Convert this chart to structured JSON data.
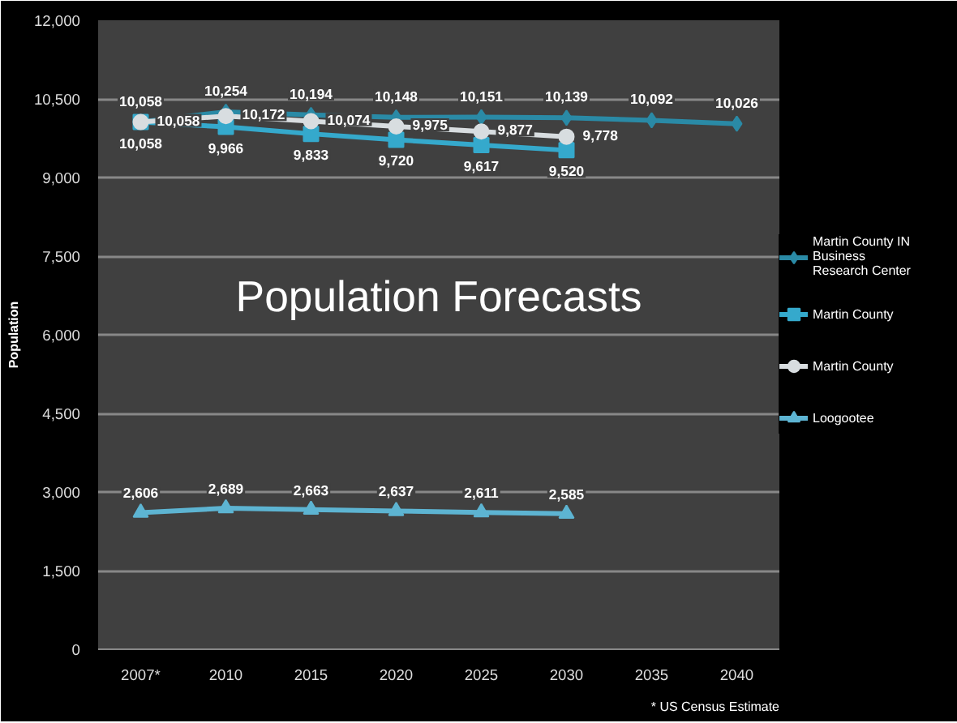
{
  "chart_data": {
    "type": "line",
    "title": "Population Forecasts",
    "ylabel": "Population",
    "categories": [
      "2007*",
      "2010",
      "2015",
      "2020",
      "2025",
      "2030",
      "2035",
      "2040"
    ],
    "series": [
      {
        "name": "Martin County IN Business Research Center",
        "color": "#2a8aa6",
        "marker": "diamond",
        "values": [
          10058,
          10254,
          10194,
          10148,
          10151,
          10139,
          10092,
          10026
        ],
        "value_labels": [
          "10,058",
          "10,254",
          "10,194",
          "10,148",
          "10,151",
          "10,139",
          "10,092",
          "10,026"
        ]
      },
      {
        "name": "Martin County",
        "color": "#35a9cc",
        "marker": "square",
        "values": [
          10058,
          9966,
          9833,
          9720,
          9617,
          9520,
          null,
          null
        ],
        "value_labels": [
          "10,058",
          "9,966",
          "9,833",
          "9,720",
          "9,617",
          "9,520",
          null,
          null
        ]
      },
      {
        "name": "Martin County",
        "color": "#d8dde0",
        "marker": "circle",
        "values": [
          10058,
          10172,
          10074,
          9975,
          9877,
          9778,
          null,
          null
        ],
        "value_labels": [
          "10,058",
          "10,172",
          "10,074",
          "9,975",
          "9,877",
          "9,778",
          null,
          null
        ]
      },
      {
        "name": "Loogootee",
        "color": "#5db4d2",
        "marker": "triangle",
        "values": [
          2606,
          2689,
          2663,
          2637,
          2611,
          2585,
          null,
          null
        ],
        "value_labels": [
          "2,606",
          "2,689",
          "2,663",
          "2,637",
          "2,611",
          "2,585",
          null,
          null
        ]
      }
    ],
    "ylim": [
      0,
      12000
    ],
    "yticks": [
      {
        "value": 0,
        "label": "0"
      },
      {
        "value": 1500,
        "label": "1,500"
      },
      {
        "value": 3000,
        "label": "3,000"
      },
      {
        "value": 4500,
        "label": "4,500"
      },
      {
        "value": 6000,
        "label": "6,000"
      },
      {
        "value": 7500,
        "label": "7,500"
      },
      {
        "value": 9000,
        "label": "9,000"
      },
      {
        "value": 10500,
        "label": "10,500"
      },
      {
        "value": 12000,
        "label": "12,000"
      }
    ],
    "grid": "y",
    "legend": "right",
    "annotations": [
      "* US Census Estimate"
    ]
  }
}
